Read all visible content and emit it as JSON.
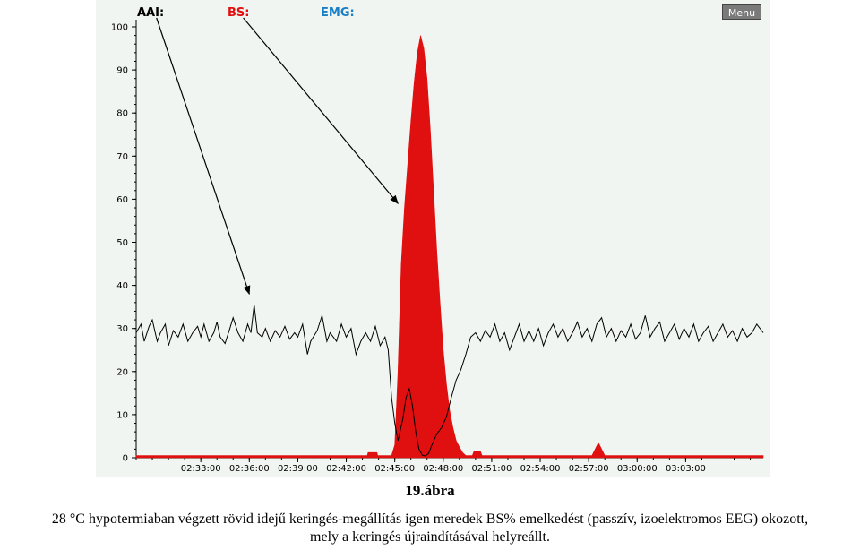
{
  "legend": {
    "aai": {
      "label": "AAI:",
      "color": "#000000"
    },
    "bs": {
      "label": "BS:",
      "color": "#e01010"
    },
    "emg": {
      "label": "EMG:",
      "color": "#1a7fc4"
    }
  },
  "menu": {
    "label": "Menu"
  },
  "figure_label": "19.ábra",
  "caption": {
    "line1": "28 °C hypotermiaban végzett rövid idejű keringés-megállítás igen meredek BS% emelkedést (passzív, izoelektromos EEG) okozott,",
    "line2": "mely a keringés újraindításával helyreállt."
  },
  "chart_data": {
    "type": "line",
    "ylim": [
      0,
      100
    ],
    "xlim_minutes": [
      0,
      38.8
    ],
    "y_ticks": [
      0,
      10,
      20,
      30,
      40,
      50,
      60,
      70,
      80,
      90,
      100
    ],
    "x_ticks": [
      {
        "t": 4.0,
        "label": "02:33:00"
      },
      {
        "t": 7.0,
        "label": "02:36:00"
      },
      {
        "t": 10.0,
        "label": "02:39:00"
      },
      {
        "t": 13.0,
        "label": "02:42:00"
      },
      {
        "t": 16.0,
        "label": "02:45:00"
      },
      {
        "t": 19.0,
        "label": "02:48:00"
      },
      {
        "t": 22.0,
        "label": "02:51:00"
      },
      {
        "t": 25.0,
        "label": "02:54:00"
      },
      {
        "t": 28.0,
        "label": "02:57:00"
      },
      {
        "t": 31.0,
        "label": "03:00:00"
      },
      {
        "t": 34.0,
        "label": "03:03:00"
      }
    ],
    "series": [
      {
        "name": "BS",
        "kind": "area",
        "color": "#e01010",
        "points": [
          [
            0,
            0.5
          ],
          [
            14.3,
            0.5
          ],
          [
            14.35,
            1.2
          ],
          [
            14.9,
            1.2
          ],
          [
            14.95,
            0.5
          ],
          [
            15.8,
            0.5
          ],
          [
            16.0,
            3
          ],
          [
            16.2,
            20
          ],
          [
            16.4,
            45
          ],
          [
            16.6,
            58
          ],
          [
            16.8,
            68
          ],
          [
            17.0,
            78
          ],
          [
            17.2,
            87
          ],
          [
            17.4,
            94
          ],
          [
            17.6,
            98
          ],
          [
            17.8,
            95
          ],
          [
            18.0,
            88
          ],
          [
            18.2,
            76
          ],
          [
            18.4,
            62
          ],
          [
            18.6,
            48
          ],
          [
            18.8,
            36
          ],
          [
            19.0,
            25
          ],
          [
            19.2,
            17
          ],
          [
            19.4,
            11
          ],
          [
            19.6,
            7
          ],
          [
            19.8,
            4
          ],
          [
            20.0,
            2.5
          ],
          [
            20.2,
            1.2
          ],
          [
            20.4,
            0.5
          ],
          [
            20.8,
            0.5
          ],
          [
            20.9,
            1.5
          ],
          [
            21.3,
            1.5
          ],
          [
            21.4,
            0.5
          ],
          [
            28.2,
            0.5
          ],
          [
            28.4,
            2
          ],
          [
            28.6,
            3.5
          ],
          [
            28.8,
            2
          ],
          [
            29.0,
            0.5
          ],
          [
            38.8,
            0.5
          ]
        ]
      },
      {
        "name": "AAI",
        "kind": "line",
        "color": "#000000",
        "points": [
          [
            0,
            29
          ],
          [
            0.3,
            31
          ],
          [
            0.5,
            27
          ],
          [
            0.8,
            30.5
          ],
          [
            1.0,
            32
          ],
          [
            1.3,
            27
          ],
          [
            1.5,
            29
          ],
          [
            1.8,
            31
          ],
          [
            2.0,
            26
          ],
          [
            2.3,
            29.5
          ],
          [
            2.6,
            28
          ],
          [
            2.9,
            31
          ],
          [
            3.2,
            27
          ],
          [
            3.5,
            29
          ],
          [
            3.8,
            30.5
          ],
          [
            4.0,
            28
          ],
          [
            4.2,
            31
          ],
          [
            4.5,
            27
          ],
          [
            4.8,
            29
          ],
          [
            5.0,
            31.5
          ],
          [
            5.2,
            28
          ],
          [
            5.5,
            26.5
          ],
          [
            5.8,
            30
          ],
          [
            6.0,
            32.5
          ],
          [
            6.3,
            29
          ],
          [
            6.6,
            27
          ],
          [
            6.9,
            31
          ],
          [
            7.1,
            29
          ],
          [
            7.3,
            35.5
          ],
          [
            7.5,
            29
          ],
          [
            7.8,
            28
          ],
          [
            8.0,
            30
          ],
          [
            8.3,
            27
          ],
          [
            8.6,
            29.5
          ],
          [
            8.9,
            28
          ],
          [
            9.2,
            30.5
          ],
          [
            9.5,
            27.5
          ],
          [
            9.8,
            29
          ],
          [
            10.0,
            28
          ],
          [
            10.3,
            31
          ],
          [
            10.6,
            24
          ],
          [
            10.8,
            27
          ],
          [
            11.2,
            29.5
          ],
          [
            11.5,
            33
          ],
          [
            11.8,
            27
          ],
          [
            12.0,
            29
          ],
          [
            12.4,
            27
          ],
          [
            12.7,
            31
          ],
          [
            13.0,
            28
          ],
          [
            13.3,
            30
          ],
          [
            13.6,
            24
          ],
          [
            13.9,
            27
          ],
          [
            14.2,
            29
          ],
          [
            14.5,
            27
          ],
          [
            14.8,
            30.5
          ],
          [
            15.1,
            26
          ],
          [
            15.4,
            28
          ],
          [
            15.6,
            25
          ],
          [
            15.8,
            14
          ],
          [
            16.0,
            8
          ],
          [
            16.2,
            4
          ],
          [
            16.5,
            9
          ],
          [
            16.7,
            14
          ],
          [
            16.9,
            16
          ],
          [
            17.1,
            12
          ],
          [
            17.3,
            6
          ],
          [
            17.5,
            2
          ],
          [
            17.7,
            0.6
          ],
          [
            17.9,
            0.4
          ],
          [
            18.1,
            1
          ],
          [
            18.3,
            3
          ],
          [
            18.6,
            5.5
          ],
          [
            18.9,
            7
          ],
          [
            19.2,
            9.5
          ],
          [
            19.5,
            14
          ],
          [
            19.8,
            18
          ],
          [
            20.1,
            20.5
          ],
          [
            20.4,
            24
          ],
          [
            20.7,
            28
          ],
          [
            21.0,
            29
          ],
          [
            21.3,
            27
          ],
          [
            21.6,
            29.5
          ],
          [
            21.9,
            28
          ],
          [
            22.2,
            31
          ],
          [
            22.5,
            27
          ],
          [
            22.8,
            29
          ],
          [
            23.1,
            25
          ],
          [
            23.4,
            28
          ],
          [
            23.7,
            31
          ],
          [
            24.0,
            27
          ],
          [
            24.3,
            29.5
          ],
          [
            24.6,
            27
          ],
          [
            24.9,
            30
          ],
          [
            25.2,
            26
          ],
          [
            25.5,
            29
          ],
          [
            25.8,
            31
          ],
          [
            26.1,
            28
          ],
          [
            26.4,
            30
          ],
          [
            26.7,
            27
          ],
          [
            27.0,
            29
          ],
          [
            27.3,
            31.5
          ],
          [
            27.6,
            28
          ],
          [
            27.9,
            30
          ],
          [
            28.2,
            27
          ],
          [
            28.5,
            31
          ],
          [
            28.8,
            32.5
          ],
          [
            29.1,
            28
          ],
          [
            29.4,
            30
          ],
          [
            29.7,
            27
          ],
          [
            30.0,
            29.5
          ],
          [
            30.3,
            28
          ],
          [
            30.6,
            31
          ],
          [
            30.9,
            27.5
          ],
          [
            31.2,
            29
          ],
          [
            31.5,
            33
          ],
          [
            31.8,
            28
          ],
          [
            32.1,
            30
          ],
          [
            32.4,
            31.5
          ],
          [
            32.7,
            27
          ],
          [
            33.0,
            29
          ],
          [
            33.3,
            31
          ],
          [
            33.6,
            27.5
          ],
          [
            33.9,
            30
          ],
          [
            34.2,
            28
          ],
          [
            34.5,
            31
          ],
          [
            34.8,
            27
          ],
          [
            35.1,
            29
          ],
          [
            35.4,
            30.5
          ],
          [
            35.7,
            27
          ],
          [
            36.0,
            29
          ],
          [
            36.3,
            31
          ],
          [
            36.6,
            28
          ],
          [
            36.9,
            29.5
          ],
          [
            37.2,
            27
          ],
          [
            37.5,
            30
          ],
          [
            37.8,
            28
          ],
          [
            38.1,
            29
          ],
          [
            38.4,
            31
          ],
          [
            38.8,
            29
          ]
        ]
      }
    ],
    "annotations": [
      {
        "target": "AAI",
        "from_label": "aai",
        "to": [
          7.0,
          38
        ]
      },
      {
        "target": "BS",
        "from_label": "bs",
        "to": [
          16.2,
          59
        ]
      }
    ]
  }
}
